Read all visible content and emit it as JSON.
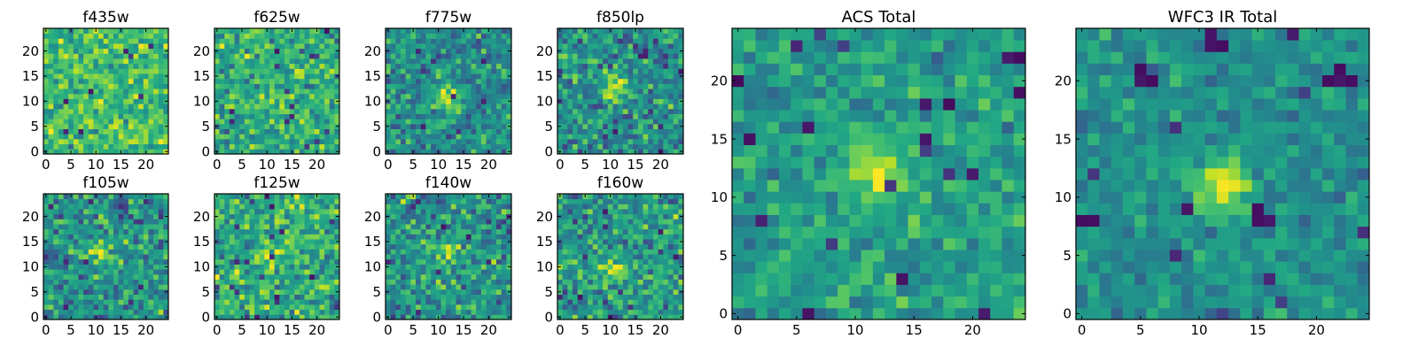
{
  "chart_data": [
    {
      "type": "heatmap",
      "title": "f435w",
      "colormap": "viridis",
      "xlim": [
        -0.5,
        24.5
      ],
      "ylim": [
        -0.5,
        24.5
      ],
      "xticks": [
        0,
        5,
        10,
        15,
        20
      ],
      "yticks": [
        0,
        5,
        10,
        15,
        20
      ],
      "rows": 25,
      "cols": 25,
      "seed": 11,
      "bright_spot": null,
      "base_level": 0.68,
      "noise": 0.16
    },
    {
      "type": "heatmap",
      "title": "f625w",
      "colormap": "viridis",
      "xlim": [
        -0.5,
        24.5
      ],
      "ylim": [
        -0.5,
        24.5
      ],
      "xticks": [
        0,
        5,
        10,
        15,
        20
      ],
      "yticks": [
        0,
        5,
        10,
        15,
        20
      ],
      "rows": 25,
      "cols": 25,
      "seed": 23,
      "bright_spot": {
        "x": 12,
        "y": 11,
        "amplitude": 0.2
      },
      "base_level": 0.62,
      "noise": 0.17
    },
    {
      "type": "heatmap",
      "title": "f775w",
      "colormap": "viridis",
      "xlim": [
        -0.5,
        24.5
      ],
      "ylim": [
        -0.5,
        24.5
      ],
      "xticks": [
        0,
        5,
        10,
        15,
        20
      ],
      "yticks": [
        0,
        5,
        10,
        15,
        20
      ],
      "rows": 25,
      "cols": 25,
      "seed": 37,
      "bright_spot": {
        "x": 12,
        "y": 11,
        "amplitude": 0.4
      },
      "base_level": 0.5,
      "noise": 0.16
    },
    {
      "type": "heatmap",
      "title": "f850lp",
      "colormap": "viridis",
      "xlim": [
        -0.5,
        24.5
      ],
      "ylim": [
        -0.5,
        24.5
      ],
      "xticks": [
        0,
        5,
        10,
        15,
        20
      ],
      "yticks": [
        0,
        5,
        10,
        15,
        20
      ],
      "rows": 25,
      "cols": 25,
      "seed": 41,
      "bright_spot": {
        "x": 11,
        "y": 13,
        "amplitude": 0.4
      },
      "base_level": 0.5,
      "noise": 0.17
    },
    {
      "type": "heatmap",
      "title": "f105w",
      "colormap": "viridis",
      "xlim": [
        -0.5,
        24.5
      ],
      "ylim": [
        -0.5,
        24.5
      ],
      "xticks": [
        0,
        5,
        10,
        15,
        20
      ],
      "yticks": [
        0,
        5,
        10,
        15,
        20
      ],
      "rows": 25,
      "cols": 25,
      "seed": 53,
      "bright_spot": {
        "x": 11,
        "y": 13,
        "amplitude": 0.25
      },
      "base_level": 0.52,
      "noise": 0.18
    },
    {
      "type": "heatmap",
      "title": "f125w",
      "colormap": "viridis",
      "xlim": [
        -0.5,
        24.5
      ],
      "ylim": [
        -0.5,
        24.5
      ],
      "xticks": [
        0,
        5,
        10,
        15,
        20
      ],
      "yticks": [
        0,
        5,
        10,
        15,
        20
      ],
      "rows": 25,
      "cols": 25,
      "seed": 67,
      "bright_spot": {
        "x": 11,
        "y": 12,
        "amplitude": 0.25
      },
      "base_level": 0.62,
      "noise": 0.18
    },
    {
      "type": "heatmap",
      "title": "f140w",
      "colormap": "viridis",
      "xlim": [
        -0.5,
        24.5
      ],
      "ylim": [
        -0.5,
        24.5
      ],
      "xticks": [
        0,
        5,
        10,
        15,
        20
      ],
      "yticks": [
        0,
        5,
        10,
        15,
        20
      ],
      "rows": 25,
      "cols": 25,
      "seed": 79,
      "bright_spot": {
        "x": 12,
        "y": 13,
        "amplitude": 0.3
      },
      "base_level": 0.52,
      "noise": 0.18
    },
    {
      "type": "heatmap",
      "title": "f160w",
      "colormap": "viridis",
      "xlim": [
        -0.5,
        24.5
      ],
      "ylim": [
        -0.5,
        24.5
      ],
      "xticks": [
        0,
        5,
        10,
        15,
        20
      ],
      "yticks": [
        0,
        5,
        10,
        15,
        20
      ],
      "rows": 25,
      "cols": 25,
      "seed": 83,
      "bright_spot": {
        "x": 11,
        "y": 10,
        "amplitude": 0.3
      },
      "base_level": 0.55,
      "noise": 0.18
    },
    {
      "type": "heatmap",
      "title": "ACS Total",
      "colormap": "viridis",
      "xlim": [
        -0.5,
        24.5
      ],
      "ylim": [
        -0.5,
        24.5
      ],
      "xticks": [
        0,
        5,
        10,
        15,
        20
      ],
      "yticks": [
        0,
        5,
        10,
        15,
        20
      ],
      "rows": 25,
      "cols": 25,
      "seed": 97,
      "bright_spot": {
        "x": 12,
        "y": 12,
        "amplitude": 0.4
      },
      "base_level": 0.55,
      "noise": 0.12,
      "dark_pixels": [
        [
          23,
          22
        ],
        [
          24,
          22
        ],
        [
          16,
          18
        ],
        [
          0,
          20
        ],
        [
          24,
          19
        ],
        [
          1,
          15
        ],
        [
          16,
          15
        ],
        [
          20,
          12
        ],
        [
          14,
          3
        ],
        [
          18,
          18
        ]
      ]
    },
    {
      "type": "heatmap",
      "title": "WFC3 IR Total",
      "colormap": "viridis",
      "xlim": [
        -0.5,
        24.5
      ],
      "ylim": [
        -0.5,
        24.5
      ],
      "xticks": [
        0,
        5,
        10,
        15,
        20
      ],
      "yticks": [
        0,
        5,
        10,
        15,
        20
      ],
      "rows": 25,
      "cols": 25,
      "seed": 101,
      "bright_spot": {
        "x": 12,
        "y": 11,
        "amplitude": 0.45
      },
      "base_level": 0.5,
      "noise": 0.1,
      "dark_pixels": [
        [
          5,
          20
        ],
        [
          6,
          20
        ],
        [
          5,
          21
        ],
        [
          21,
          20
        ],
        [
          22,
          20
        ],
        [
          23,
          20
        ],
        [
          22,
          21
        ],
        [
          12,
          23
        ],
        [
          15,
          8
        ],
        [
          16,
          8
        ],
        [
          15,
          9
        ],
        [
          18,
          24
        ],
        [
          0,
          8
        ],
        [
          1,
          8
        ]
      ]
    }
  ]
}
